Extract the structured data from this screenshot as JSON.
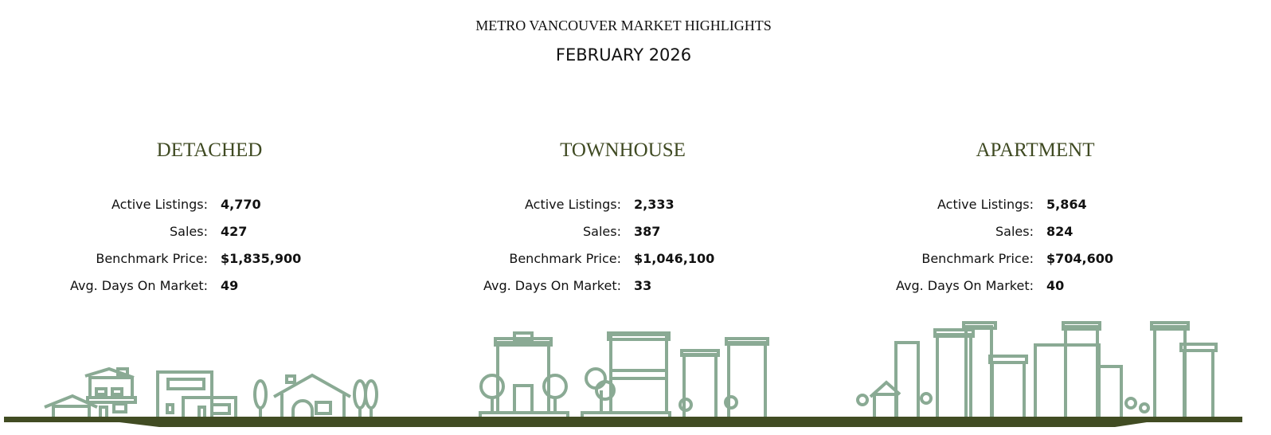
{
  "header": {
    "title": "METRO VANCOUVER MARKET HIGHLIGHTS",
    "period": "FEBRUARY 2026"
  },
  "labels": {
    "active": "Active Listings:",
    "sales": "Sales:",
    "price": "Benchmark Price:",
    "dom": "Avg. Days On Market:"
  },
  "categories": [
    {
      "name": "DETACHED",
      "active": "4,770",
      "sales": "427",
      "price": "$1,835,900",
      "dom": "49"
    },
    {
      "name": "TOWNHOUSE",
      "active": "2,333",
      "sales": "387",
      "price": "$1,046,100",
      "dom": "33"
    },
    {
      "name": "APARTMENT",
      "active": "5,864",
      "sales": "824",
      "price": "$704,600",
      "dom": "40"
    }
  ],
  "colors": {
    "heading": "#3f4a22",
    "illustration": "#8aaa94",
    "ground": "#414c23"
  }
}
